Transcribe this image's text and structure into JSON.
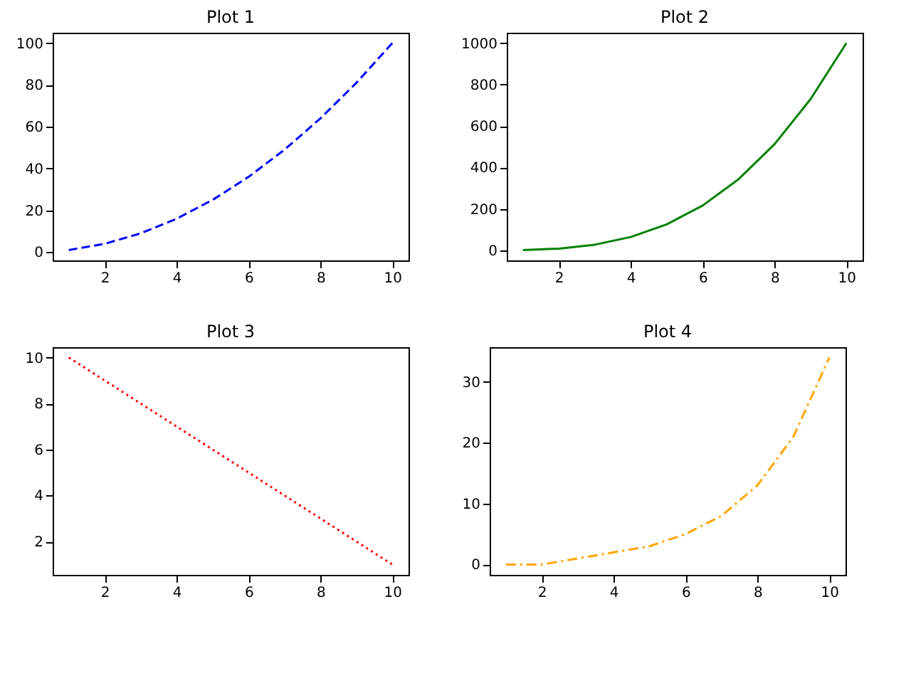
{
  "chart_data": [
    {
      "type": "line",
      "title": "Plot 1",
      "x": [
        1,
        2,
        3,
        4,
        5,
        6,
        7,
        8,
        9,
        10
      ],
      "series": [
        {
          "color": "#0000ff",
          "values": [
            1,
            4,
            9,
            16,
            25,
            36,
            49,
            64,
            81,
            100
          ],
          "line_style": "dashed"
        }
      ],
      "xlim": [
        0.55,
        10.45
      ],
      "ylim": [
        -3.95,
        104.95
      ],
      "xticks": [
        2,
        4,
        6,
        8,
        10
      ],
      "yticks": [
        0,
        20,
        40,
        60,
        80,
        100
      ],
      "grid": false
    },
    {
      "type": "line",
      "title": "Plot 2",
      "x": [
        1,
        2,
        3,
        4,
        5,
        6,
        7,
        8,
        9,
        10
      ],
      "series": [
        {
          "color": "#008000",
          "values": [
            1,
            8,
            27,
            64,
            125,
            216,
            343,
            512,
            729,
            1000
          ],
          "line_style": "solid"
        }
      ],
      "xlim": [
        0.55,
        10.45
      ],
      "ylim": [
        -48.95,
        1049.95
      ],
      "xticks": [
        2,
        4,
        6,
        8,
        10
      ],
      "yticks": [
        0,
        200,
        400,
        600,
        800,
        1000
      ],
      "grid": false
    },
    {
      "type": "line",
      "title": "Plot 3",
      "x": [
        1,
        2,
        3,
        4,
        5,
        6,
        7,
        8,
        9,
        10
      ],
      "series": [
        {
          "color": "#ff0000",
          "values": [
            10,
            9,
            8,
            7,
            6,
            5,
            4,
            3,
            2,
            1
          ],
          "line_style": "dotted"
        }
      ],
      "xlim": [
        0.55,
        10.45
      ],
      "ylim": [
        0.55,
        10.45
      ],
      "xticks": [
        2,
        4,
        6,
        8,
        10
      ],
      "yticks": [
        2,
        4,
        6,
        8,
        10
      ],
      "grid": false
    },
    {
      "type": "line",
      "title": "Plot 4",
      "x": [
        1,
        2,
        3,
        4,
        5,
        6,
        7,
        8,
        9,
        10
      ],
      "series": [
        {
          "color": "#ffa500",
          "values": [
            0,
            0,
            1,
            2,
            3,
            5,
            8,
            13,
            21,
            34
          ],
          "line_style": "dashdot"
        }
      ],
      "xlim": [
        0.55,
        10.45
      ],
      "ylim": [
        -1.7,
        35.7
      ],
      "xticks": [
        2,
        4,
        6,
        8,
        10
      ],
      "yticks": [
        0,
        10,
        20,
        30
      ],
      "grid": false
    }
  ]
}
